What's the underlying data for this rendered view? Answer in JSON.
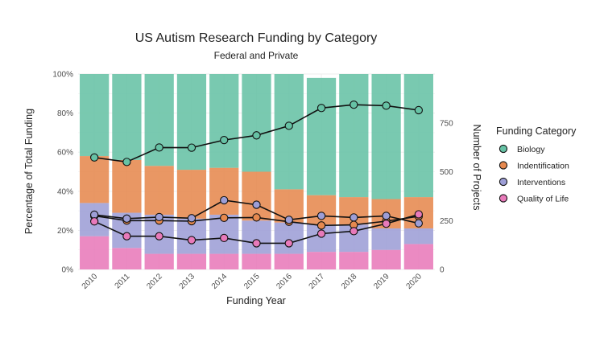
{
  "chart_data": {
    "type": "bar",
    "title": "US Autism Research Funding by Category",
    "subtitle": "Federal and Private",
    "xlabel": "Funding Year",
    "ylabel": "Percentage of Total Funding",
    "y2label": "Number of Projects",
    "categories": [
      "2010",
      "2011",
      "2012",
      "2013",
      "2014",
      "2015",
      "2016",
      "2017",
      "2018",
      "2019",
      "2020"
    ],
    "ylim": [
      0,
      100
    ],
    "y_ticks": [
      "0%",
      "20%",
      "40%",
      "60%",
      "80%",
      "100%"
    ],
    "y2lim": [
      0,
      1000
    ],
    "y2_ticks": [
      "0",
      "250",
      "500",
      "750"
    ],
    "grid": true,
    "legend": {
      "title": "Funding Category",
      "placement": "right"
    },
    "series": [
      {
        "name": "Biology",
        "color": "#66c2a5",
        "percent_share": [
          42,
          44,
          47,
          49,
          48,
          50,
          59,
          60,
          63,
          64,
          63
        ],
        "projects": [
          573,
          550,
          624,
          623,
          662,
          686,
          735,
          826,
          843,
          838,
          815
        ]
      },
      {
        "name": "Indentification",
        "color": "#e6894f",
        "percent_share": [
          24,
          27,
          25,
          25,
          24,
          25,
          17,
          15,
          14,
          15,
          16
        ],
        "projects": [
          274,
          250,
          250,
          247,
          264,
          266,
          244,
          225,
          228,
          247,
          272
        ]
      },
      {
        "name": "Interventions",
        "color": "#9d9ed6",
        "percent_share": [
          17,
          18,
          20,
          18,
          20,
          17,
          16,
          14,
          14,
          11,
          8
        ],
        "projects": [
          280,
          260,
          268,
          262,
          354,
          331,
          254,
          274,
          266,
          274,
          236
        ]
      },
      {
        "name": "Quality of Life",
        "color": "#e87aba",
        "percent_share": [
          17,
          11,
          8,
          8,
          8,
          8,
          8,
          9,
          9,
          10,
          13
        ],
        "projects": [
          246,
          170,
          170,
          150,
          161,
          134,
          134,
          183,
          196,
          234,
          282
        ]
      }
    ]
  }
}
